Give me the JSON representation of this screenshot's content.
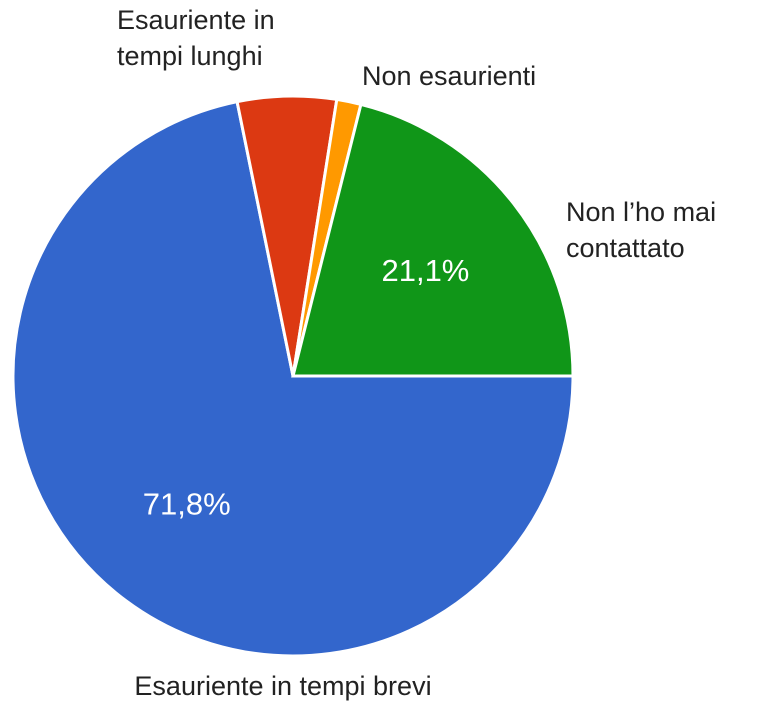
{
  "chart_data": {
    "type": "pie",
    "categories": [
      "Esauriente in tempi brevi",
      "Esauriente in tempi lunghi",
      "Non esaurienti",
      "Non l’ho mai contattato"
    ],
    "values": [
      71.8,
      5.7,
      1.4,
      21.1
    ],
    "value_labels": [
      "71,8%",
      null,
      null,
      "21,1%"
    ],
    "colors": [
      "#3366cc",
      "#dc3912",
      "#ff9900",
      "#109618"
    ]
  }
}
